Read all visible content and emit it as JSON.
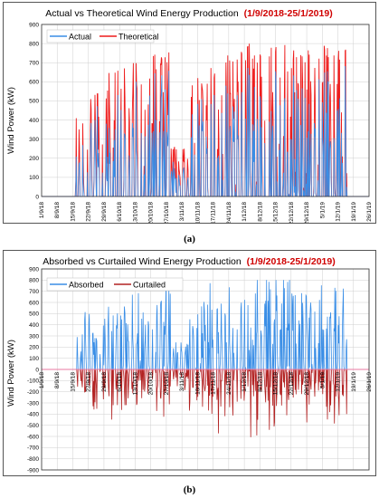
{
  "captions": {
    "a": "(a)",
    "b": "(b)"
  },
  "chart_data": [
    {
      "type": "line",
      "title": "Actual vs Theoretical Wind Energy Production",
      "title_range": "(1/9/2018-25/1/2019)",
      "ylabel": "Wind Power (kW)",
      "xlabel": "",
      "ylim": [
        0,
        900
      ],
      "yticks": [
        0,
        100,
        200,
        300,
        400,
        500,
        600,
        700,
        800,
        900
      ],
      "x_start": "2018-09-01",
      "x_end": "2019-01-26",
      "xtick_labels": [
        "1/9/18",
        "8/9/18",
        "15/9/18",
        "22/9/18",
        "29/9/18",
        "6/10/18",
        "13/10/18",
        "20/10/18",
        "27/10/18",
        "3/11/18",
        "10/11/18",
        "17/11/18",
        "24/11/18",
        "1/12/18",
        "8/12/18",
        "15/12/18",
        "22/12/18",
        "29/12/18",
        "5/1/19",
        "12/1/19",
        "19/1/19",
        "26/1/19"
      ],
      "grid": true,
      "legend_position": "top-left",
      "series": [
        {
          "name": "Actual",
          "color": "#3a8ee6"
        },
        {
          "name": "Theoretical",
          "color": "#ee1c1c"
        }
      ],
      "approx_daily_peaks": [
        [
          "2018-09-17",
          480
        ],
        [
          "2018-09-20",
          640
        ],
        [
          "2018-09-28",
          580
        ],
        [
          "2018-10-05",
          775
        ],
        [
          "2018-10-12",
          720
        ],
        [
          "2018-10-18",
          690
        ],
        [
          "2018-10-26",
          800
        ],
        [
          "2018-11-05",
          310
        ],
        [
          "2018-11-12",
          800
        ],
        [
          "2018-11-20",
          800
        ],
        [
          "2018-12-01",
          780
        ],
        [
          "2018-12-08",
          810
        ],
        [
          "2018-12-20",
          805
        ],
        [
          "2018-12-29",
          810
        ],
        [
          "2019-01-05",
          790
        ],
        [
          "2019-01-15",
          800
        ],
        [
          "2019-01-25",
          800
        ]
      ]
    },
    {
      "type": "line",
      "title": "Absorbed vs Curtailed Wind Energy Production",
      "title_range": "(1/9/2018-25/1/2019)",
      "ylabel": "Wind Power (kW)",
      "xlabel": "",
      "ylim": [
        -900,
        900
      ],
      "yticks": [
        -900,
        -800,
        -700,
        -600,
        -500,
        -400,
        -300,
        -200,
        -100,
        0,
        100,
        200,
        300,
        400,
        500,
        600,
        700,
        800,
        900
      ],
      "x_start": "2018-09-01",
      "x_end": "2019-01-26",
      "xtick_labels": [
        "1/9/18",
        "8/9/18",
        "15/9/18",
        "22/9/18",
        "29/9/18",
        "6/10/18",
        "13/10/18",
        "20/10/18",
        "27/10/18",
        "3/11/18",
        "10/11/18",
        "17/11/18",
        "24/11/18",
        "1/12/18",
        "8/12/18",
        "15/12/18",
        "22/12/18",
        "29/12/18",
        "5/1/19",
        "12/1/19",
        "19/1/19",
        "26/1/19"
      ],
      "grid": true,
      "legend_position": "top-left",
      "series": [
        {
          "name": "Absorbed",
          "color": "#3a8ee6"
        },
        {
          "name": "Curtailed",
          "color": "#b22222"
        }
      ],
      "approx_min_curtailed": -790
    }
  ]
}
